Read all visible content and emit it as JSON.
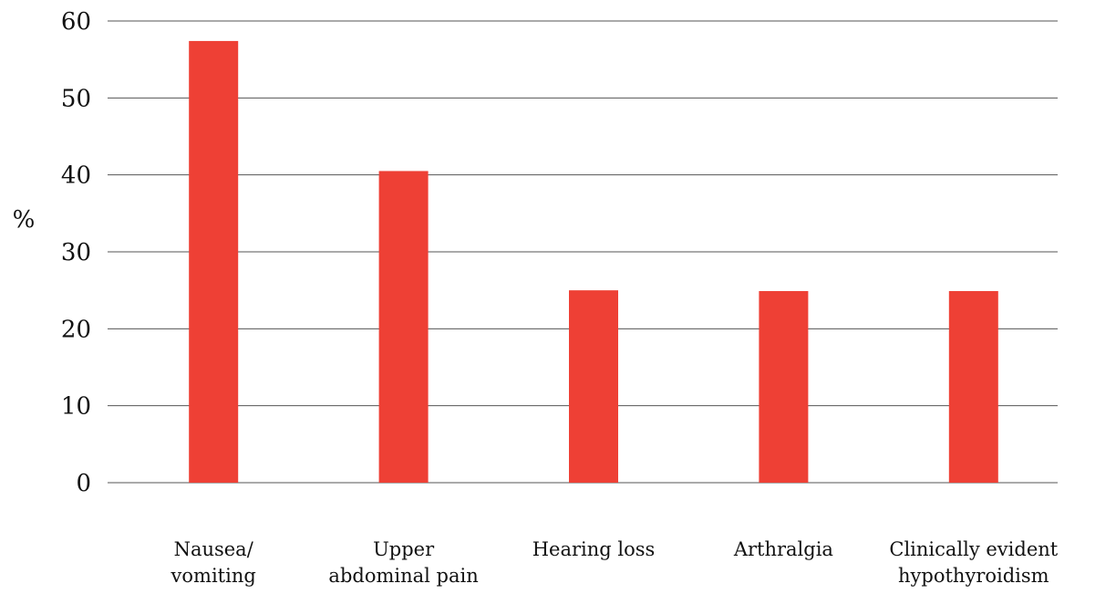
{
  "chart_data": {
    "type": "bar",
    "y_label": "%",
    "categories": [
      "Nausea/\nvomiting",
      "Upper\nabdominal pain",
      "Hearing loss",
      "Arthralgia",
      "Clinically evident\nhypothyroidism"
    ],
    "values": [
      57.4,
      40.5,
      25,
      24.9,
      24.9
    ],
    "color": "#ee4035",
    "ylim": [
      0,
      60
    ],
    "yticks": [
      0,
      10,
      20,
      30,
      40,
      50,
      60
    ],
    "grid": true
  }
}
